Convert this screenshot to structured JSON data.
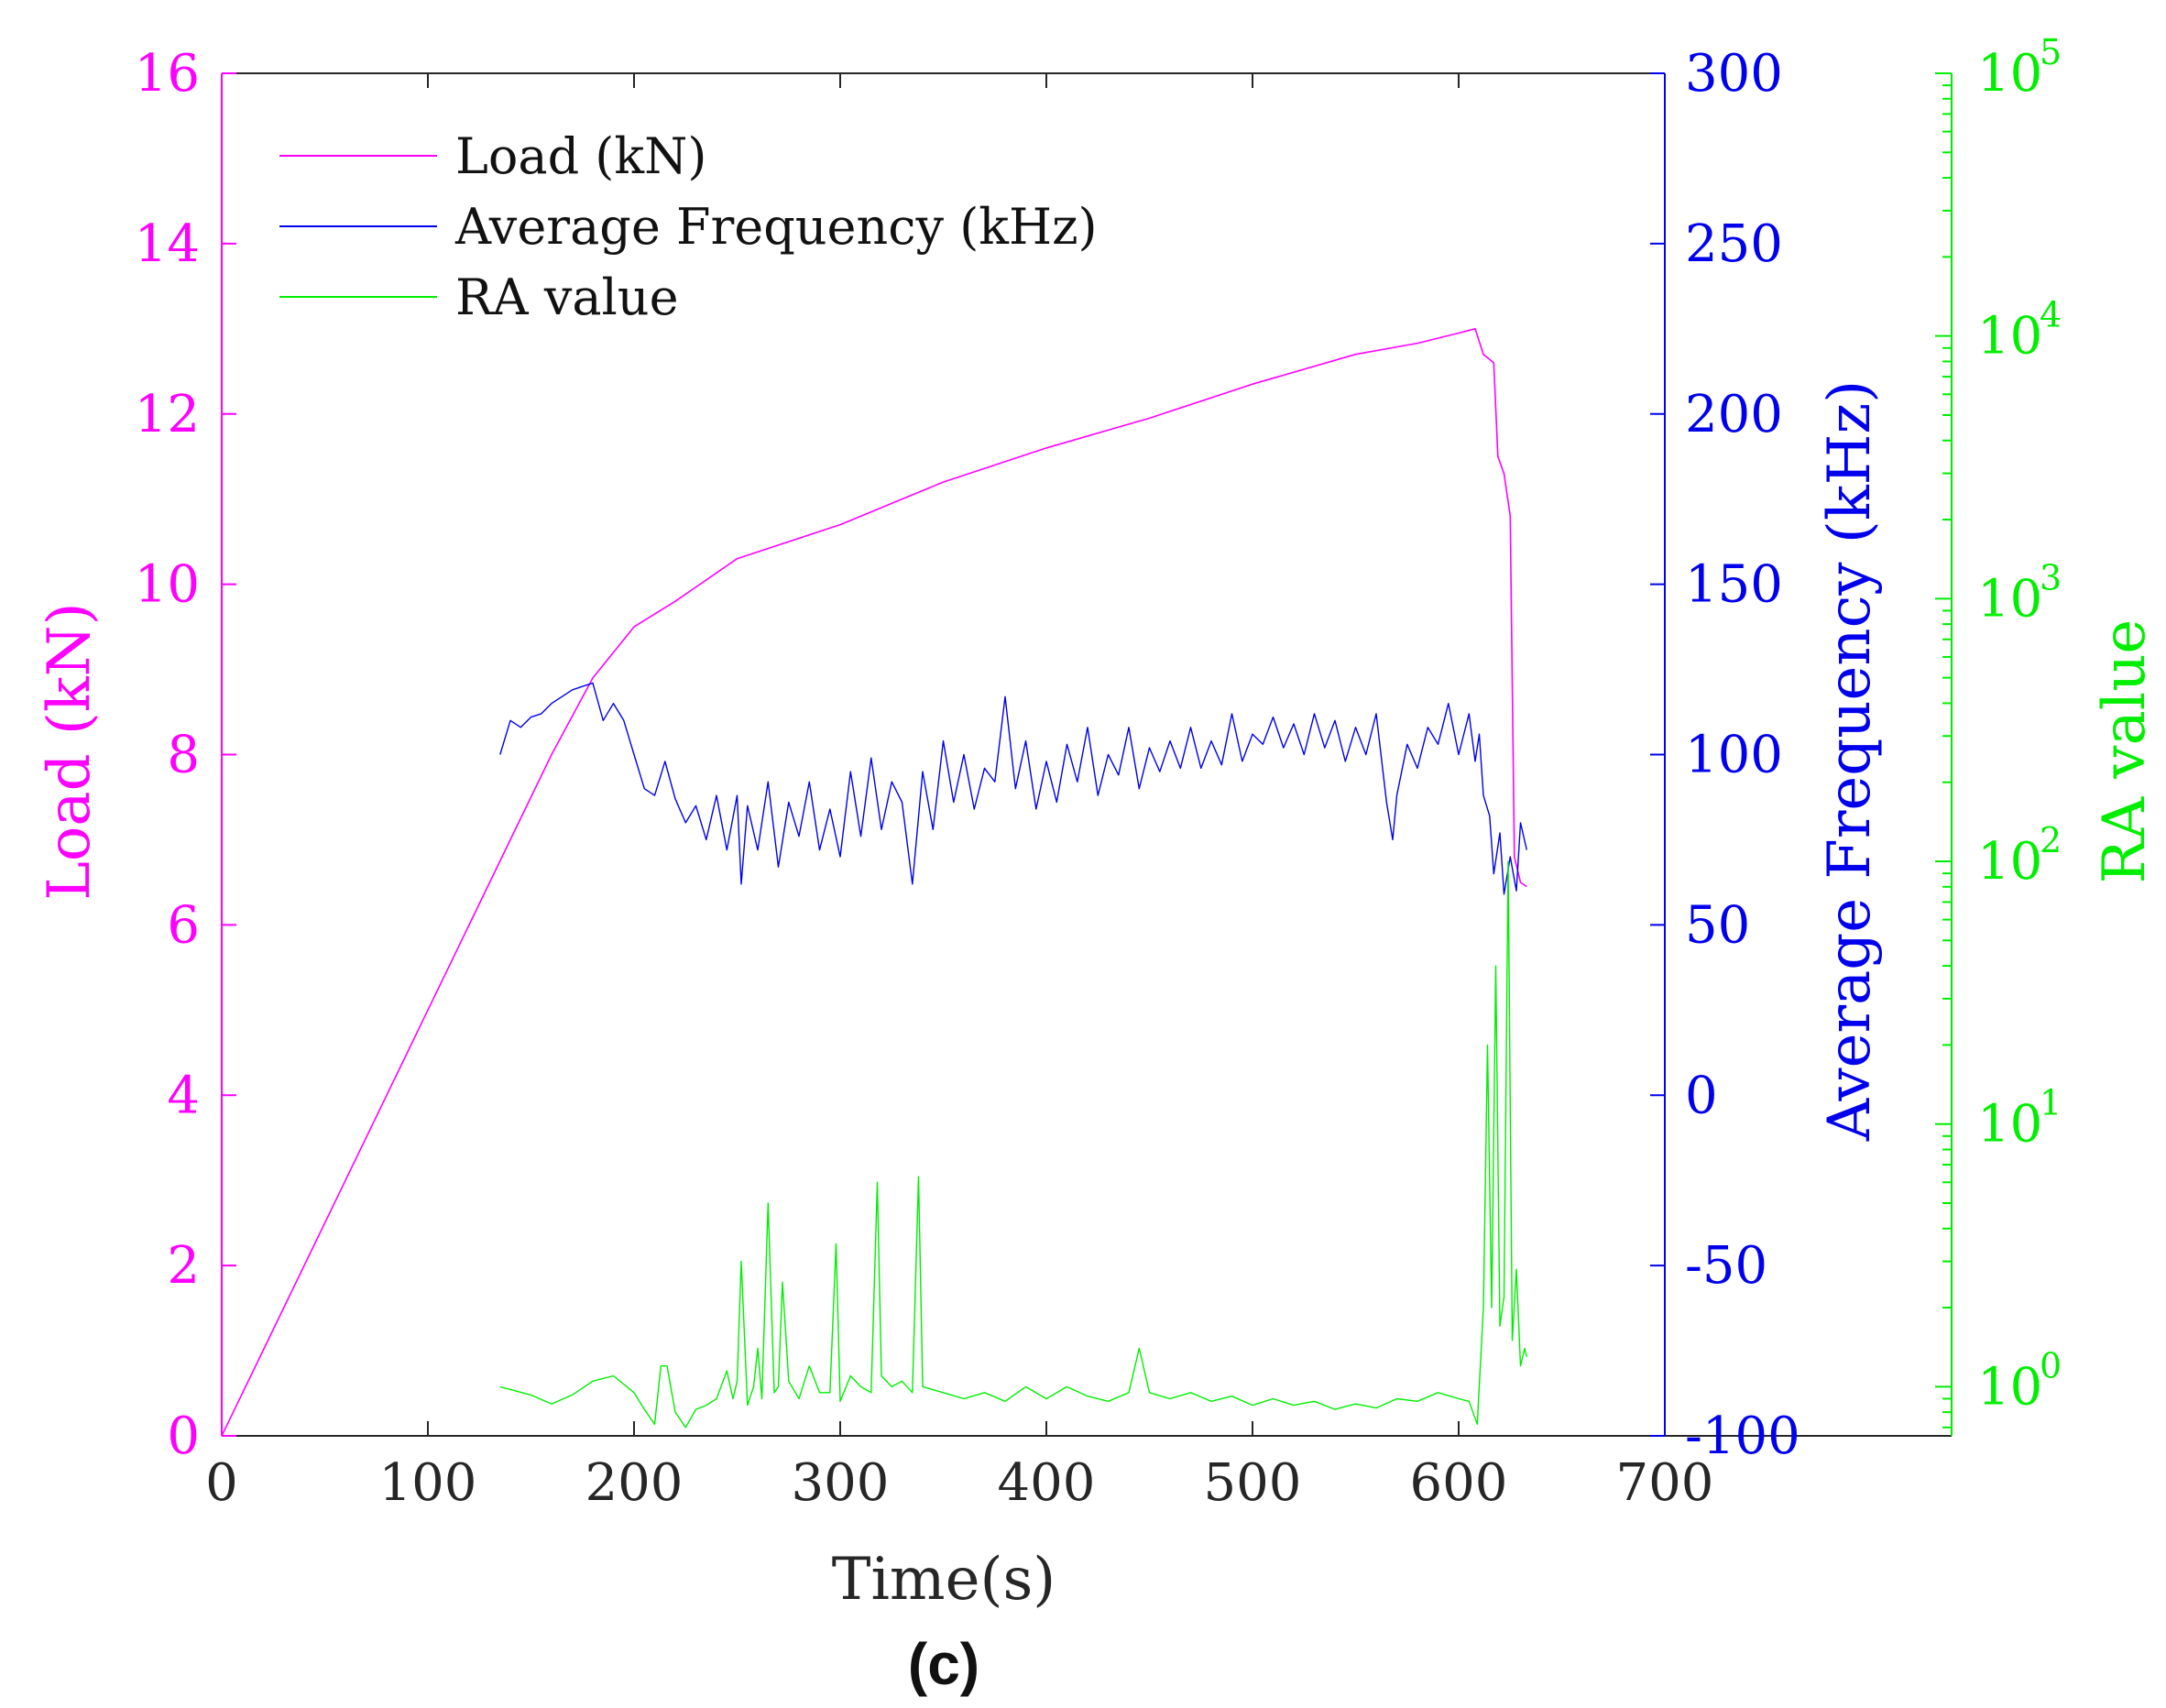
{
  "chart_data": {
    "type": "line",
    "caption": "(c)",
    "xlabel": "Time(s)",
    "xlim": [
      0,
      700
    ],
    "xticks": [
      0,
      100,
      200,
      300,
      400,
      500,
      600,
      700
    ],
    "colors": {
      "load": "#ff00ff",
      "freq": "#0000ee",
      "ra": "#00ee00",
      "axis": "#262626"
    },
    "axes": {
      "load": {
        "label": "Load (kN)",
        "ylim": [
          0,
          16
        ],
        "ticks": [
          0,
          2,
          4,
          6,
          8,
          10,
          12,
          14,
          16
        ]
      },
      "freq": {
        "label": "Average Frequency (kHz)",
        "ylim": [
          -100,
          300
        ],
        "ticks": [
          -100,
          -50,
          0,
          50,
          100,
          150,
          200,
          250,
          300
        ],
        "tick_labels": [
          "-100",
          "-50",
          "0",
          "50",
          "100",
          "150",
          "200",
          "250",
          "300"
        ]
      },
      "ra": {
        "label": "RA value",
        "scale": "log",
        "ylim": [
          0.65,
          100000
        ],
        "ticks": [
          1,
          10,
          100,
          1000,
          10000,
          100000
        ],
        "tick_labels": [
          {
            "base": "10",
            "exp": "0"
          },
          {
            "base": "10",
            "exp": "1"
          },
          {
            "base": "10",
            "exp": "2"
          },
          {
            "base": "10",
            "exp": "3"
          },
          {
            "base": "10",
            "exp": "4"
          },
          {
            "base": "10",
            "exp": "5"
          }
        ]
      }
    },
    "legend": {
      "position": "top-left",
      "entries": [
        {
          "key": "load",
          "label": "Load (kN)"
        },
        {
          "key": "freq",
          "label": "Average Frequency (kHz)"
        },
        {
          "key": "ra",
          "label": "RA value"
        }
      ]
    },
    "series": [
      {
        "key": "load",
        "name": "Load (kN)",
        "axis": "load",
        "points": [
          [
            0,
            0
          ],
          [
            20,
            1
          ],
          [
            40,
            2
          ],
          [
            60,
            3
          ],
          [
            80,
            4
          ],
          [
            100,
            5
          ],
          [
            120,
            6
          ],
          [
            140,
            7
          ],
          [
            160,
            8
          ],
          [
            180,
            8.9
          ],
          [
            200,
            9.5
          ],
          [
            220,
            9.8
          ],
          [
            250,
            10.3
          ],
          [
            300,
            10.7
          ],
          [
            350,
            11.2
          ],
          [
            400,
            11.6
          ],
          [
            450,
            11.95
          ],
          [
            500,
            12.35
          ],
          [
            550,
            12.7
          ],
          [
            580,
            12.83
          ],
          [
            600,
            12.95
          ],
          [
            608,
            13
          ],
          [
            612,
            12.7
          ],
          [
            617,
            12.6
          ],
          [
            619,
            11.5
          ],
          [
            622,
            11.3
          ],
          [
            625,
            10.8
          ],
          [
            627,
            6.8
          ],
          [
            630,
            6.5
          ],
          [
            633,
            6.45
          ]
        ]
      },
      {
        "key": "freq",
        "name": "Average Frequency (kHz)",
        "axis": "freq",
        "points": [
          [
            135,
            100
          ],
          [
            140,
            110
          ],
          [
            145,
            108
          ],
          [
            150,
            111
          ],
          [
            155,
            112
          ],
          [
            160,
            115
          ],
          [
            165,
            117
          ],
          [
            170,
            119
          ],
          [
            175,
            120
          ],
          [
            180,
            121
          ],
          [
            185,
            110
          ],
          [
            190,
            115
          ],
          [
            195,
            110
          ],
          [
            200,
            100
          ],
          [
            205,
            90
          ],
          [
            210,
            88
          ],
          [
            215,
            98
          ],
          [
            220,
            87
          ],
          [
            225,
            80
          ],
          [
            230,
            85
          ],
          [
            235,
            75
          ],
          [
            240,
            88
          ],
          [
            245,
            72
          ],
          [
            250,
            88
          ],
          [
            252,
            62
          ],
          [
            255,
            85
          ],
          [
            260,
            72
          ],
          [
            265,
            92
          ],
          [
            270,
            67
          ],
          [
            275,
            86
          ],
          [
            280,
            76
          ],
          [
            285,
            92
          ],
          [
            290,
            72
          ],
          [
            295,
            84
          ],
          [
            300,
            70
          ],
          [
            305,
            95
          ],
          [
            310,
            76
          ],
          [
            315,
            99
          ],
          [
            320,
            78
          ],
          [
            325,
            92
          ],
          [
            330,
            86
          ],
          [
            335,
            62
          ],
          [
            340,
            95
          ],
          [
            345,
            78
          ],
          [
            350,
            104
          ],
          [
            355,
            86
          ],
          [
            360,
            100
          ],
          [
            365,
            84
          ],
          [
            370,
            96
          ],
          [
            375,
            92
          ],
          [
            380,
            117
          ],
          [
            385,
            90
          ],
          [
            390,
            104
          ],
          [
            395,
            84
          ],
          [
            400,
            98
          ],
          [
            405,
            86
          ],
          [
            410,
            103
          ],
          [
            415,
            92
          ],
          [
            420,
            108
          ],
          [
            425,
            88
          ],
          [
            430,
            100
          ],
          [
            435,
            94
          ],
          [
            440,
            108
          ],
          [
            445,
            90
          ],
          [
            450,
            102
          ],
          [
            455,
            95
          ],
          [
            460,
            104
          ],
          [
            465,
            96
          ],
          [
            470,
            108
          ],
          [
            475,
            96
          ],
          [
            480,
            104
          ],
          [
            485,
            97
          ],
          [
            490,
            112
          ],
          [
            495,
            98
          ],
          [
            500,
            106
          ],
          [
            505,
            103
          ],
          [
            510,
            111
          ],
          [
            515,
            102
          ],
          [
            520,
            109
          ],
          [
            525,
            100
          ],
          [
            530,
            112
          ],
          [
            535,
            102
          ],
          [
            540,
            110
          ],
          [
            545,
            98
          ],
          [
            550,
            108
          ],
          [
            555,
            100
          ],
          [
            560,
            112
          ],
          [
            565,
            86
          ],
          [
            568,
            75
          ],
          [
            570,
            88
          ],
          [
            575,
            103
          ],
          [
            580,
            96
          ],
          [
            585,
            108
          ],
          [
            590,
            103
          ],
          [
            595,
            115
          ],
          [
            600,
            100
          ],
          [
            605,
            112
          ],
          [
            608,
            98
          ],
          [
            610,
            106
          ],
          [
            612,
            88
          ],
          [
            615,
            82
          ],
          [
            617,
            65
          ],
          [
            620,
            77
          ],
          [
            622,
            59
          ],
          [
            625,
            70
          ],
          [
            628,
            60
          ],
          [
            630,
            80
          ],
          [
            633,
            72
          ]
        ]
      },
      {
        "key": "ra",
        "name": "RA value",
        "axis": "ra",
        "points": [
          [
            135,
            1.0
          ],
          [
            150,
            0.93
          ],
          [
            160,
            0.86
          ],
          [
            170,
            0.93
          ],
          [
            180,
            1.05
          ],
          [
            190,
            1.1
          ],
          [
            200,
            0.95
          ],
          [
            205,
            0.82
          ],
          [
            210,
            0.72
          ],
          [
            213,
            1.2
          ],
          [
            216,
            1.2
          ],
          [
            220,
            0.8
          ],
          [
            225,
            0.7
          ],
          [
            230,
            0.82
          ],
          [
            235,
            0.85
          ],
          [
            240,
            0.9
          ],
          [
            245,
            1.15
          ],
          [
            248,
            0.9
          ],
          [
            250,
            1.05
          ],
          [
            252,
            3.0
          ],
          [
            255,
            0.85
          ],
          [
            258,
            1.0
          ],
          [
            260,
            1.4
          ],
          [
            262,
            0.9
          ],
          [
            265,
            5.0
          ],
          [
            268,
            0.95
          ],
          [
            270,
            1.0
          ],
          [
            272,
            2.5
          ],
          [
            275,
            1.05
          ],
          [
            280,
            0.9
          ],
          [
            285,
            1.2
          ],
          [
            290,
            0.95
          ],
          [
            295,
            0.95
          ],
          [
            298,
            3.5
          ],
          [
            300,
            0.88
          ],
          [
            305,
            1.1
          ],
          [
            310,
            1.0
          ],
          [
            315,
            0.95
          ],
          [
            318,
            6.0
          ],
          [
            320,
            1.1
          ],
          [
            325,
            1.0
          ],
          [
            330,
            1.05
          ],
          [
            335,
            0.95
          ],
          [
            338,
            6.3
          ],
          [
            340,
            1.0
          ],
          [
            350,
            0.95
          ],
          [
            360,
            0.9
          ],
          [
            370,
            0.95
          ],
          [
            380,
            0.88
          ],
          [
            390,
            1.0
          ],
          [
            400,
            0.9
          ],
          [
            410,
            1.0
          ],
          [
            420,
            0.92
          ],
          [
            430,
            0.88
          ],
          [
            440,
            0.95
          ],
          [
            445,
            1.4
          ],
          [
            450,
            0.95
          ],
          [
            460,
            0.9
          ],
          [
            470,
            0.95
          ],
          [
            480,
            0.88
          ],
          [
            490,
            0.92
          ],
          [
            500,
            0.85
          ],
          [
            510,
            0.9
          ],
          [
            520,
            0.85
          ],
          [
            530,
            0.88
          ],
          [
            540,
            0.82
          ],
          [
            550,
            0.86
          ],
          [
            560,
            0.83
          ],
          [
            570,
            0.9
          ],
          [
            580,
            0.88
          ],
          [
            590,
            0.95
          ],
          [
            600,
            0.9
          ],
          [
            605,
            0.88
          ],
          [
            609,
            0.72
          ],
          [
            612,
            2.0
          ],
          [
            614,
            20
          ],
          [
            616,
            2.0
          ],
          [
            618,
            40
          ],
          [
            620,
            1.7
          ],
          [
            622,
            2.2
          ],
          [
            624,
            100
          ],
          [
            626,
            1.5
          ],
          [
            628,
            2.8
          ],
          [
            630,
            1.2
          ],
          [
            632,
            1.4
          ],
          [
            633,
            1.3
          ]
        ]
      }
    ]
  }
}
